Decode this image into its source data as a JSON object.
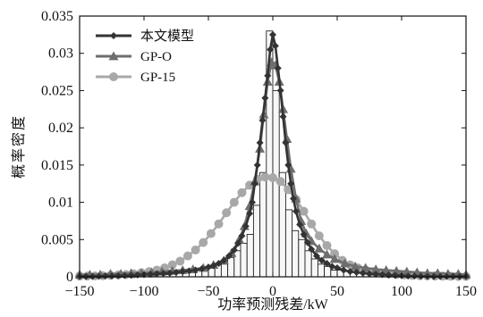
{
  "chart_data": {
    "type": "line",
    "xlabel": "功率预测残差/kW",
    "ylabel": "概率密度",
    "xlim": [
      -150,
      150
    ],
    "ylim": [
      0,
      0.035
    ],
    "x_ticks": [
      -150,
      -100,
      -50,
      0,
      50,
      100,
      150
    ],
    "x_tick_labels": [
      "−150",
      "−100",
      "−50",
      "0",
      "50",
      "100",
      "150"
    ],
    "y_ticks": [
      0,
      0.005,
      0.01,
      0.015,
      0.02,
      0.025,
      0.03,
      0.035
    ],
    "y_tick_labels": [
      "0",
      "0.005",
      "0.01",
      "0.015",
      "0.02",
      "0.025",
      "0.03",
      "0.035"
    ],
    "legend_position": "top-left",
    "histogram": {
      "bin_width": 5,
      "bin_starts": [
        -150,
        -145,
        -140,
        -135,
        -130,
        -125,
        -120,
        -115,
        -110,
        -105,
        -100,
        -95,
        -90,
        -85,
        -80,
        -75,
        -70,
        -65,
        -60,
        -55,
        -50,
        -45,
        -40,
        -35,
        -30,
        -25,
        -20,
        -15,
        -10,
        -5,
        0,
        5,
        10,
        15,
        20,
        25,
        30,
        35,
        40,
        45,
        50,
        55,
        60,
        65,
        70,
        75,
        80,
        85,
        90,
        95,
        100,
        105,
        110,
        115,
        120,
        125,
        130,
        135,
        140,
        145
      ],
      "values": [
        0,
        0,
        0,
        0,
        0.0001,
        0,
        0,
        0.0001,
        0.0001,
        0.0002,
        0.0003,
        0.0003,
        0.0004,
        0.0003,
        0.0006,
        0.0006,
        0.0008,
        0.0007,
        0.001,
        0.0009,
        0.0012,
        0.0016,
        0.0017,
        0.0026,
        0.0035,
        0.0045,
        0.0057,
        0.0096,
        0.014,
        0.033,
        0.025,
        0.014,
        0.009,
        0.0062,
        0.005,
        0.0035,
        0.0024,
        0.0017,
        0.0014,
        0.0009,
        0.0009,
        0.0008,
        0.0006,
        0.0005,
        0.0005,
        0.0003,
        0.0002,
        0.0002,
        0.0002,
        0.0001,
        0.0001,
        0.0001,
        0,
        0.0001,
        0,
        0,
        0,
        0,
        0,
        0
      ]
    },
    "series": [
      {
        "name": "本文模型",
        "color": "#333333",
        "marker": "diamond",
        "x": [
          -150,
          -145,
          -140,
          -135,
          -130,
          -125,
          -120,
          -115,
          -110,
          -105,
          -100,
          -95,
          -90,
          -85,
          -80,
          -75,
          -70,
          -65,
          -60,
          -55,
          -50,
          -46,
          -42,
          -38,
          -34,
          -30,
          -27,
          -24,
          -21,
          -18,
          -16,
          -14,
          -12,
          -10,
          -8,
          -6,
          -4,
          -2,
          0,
          2,
          4,
          6,
          8,
          10,
          12,
          14,
          16,
          18,
          21,
          24,
          27,
          30,
          34,
          38,
          42,
          46,
          50,
          55,
          60,
          65,
          70,
          75,
          80,
          85,
          90,
          95,
          100,
          105,
          110,
          115,
          120,
          125,
          130,
          135,
          140,
          145,
          150
        ],
        "y": [
          5e-05,
          5e-05,
          5e-05,
          7e-05,
          0.0001,
          0.00012,
          0.00015,
          0.00018,
          0.0002,
          0.00025,
          0.0003,
          0.00035,
          0.0004,
          0.00045,
          0.0005,
          0.0006,
          0.0007,
          0.0008,
          0.0009,
          0.0011,
          0.0013,
          0.0015,
          0.0018,
          0.0022,
          0.0028,
          0.0036,
          0.0045,
          0.0055,
          0.0068,
          0.0085,
          0.01,
          0.0125,
          0.015,
          0.018,
          0.021,
          0.024,
          0.027,
          0.0305,
          0.0325,
          0.031,
          0.028,
          0.025,
          0.0215,
          0.018,
          0.015,
          0.0125,
          0.0105,
          0.0088,
          0.007,
          0.0057,
          0.0046,
          0.0037,
          0.0028,
          0.0022,
          0.0018,
          0.0014,
          0.0012,
          0.0009,
          0.0007,
          0.0006,
          0.0005,
          0.0004,
          0.00035,
          0.0003,
          0.00025,
          0.0002,
          0.00015,
          0.0001,
          0.0001,
          8e-05,
          6e-05,
          5e-05,
          5e-05,
          5e-05,
          5e-05,
          5e-05,
          5e-05
        ]
      },
      {
        "name": "GP-O",
        "color": "#6e6e6e",
        "marker": "triangle",
        "x": [
          -150,
          -142,
          -134,
          -126,
          -118,
          -110,
          -102,
          -94,
          -86,
          -78,
          -70,
          -62,
          -54,
          -46,
          -38,
          -32,
          -26,
          -22,
          -18,
          -14,
          -10,
          -7,
          -4,
          -1,
          2,
          5,
          8,
          11,
          14,
          18,
          22,
          26,
          30,
          36,
          42,
          48,
          56,
          64,
          72,
          80,
          88,
          96,
          104,
          112,
          120,
          128,
          136,
          144,
          150
        ],
        "y": [
          0.0003,
          0.0003,
          0.0003,
          0.0004,
          0.0004,
          0.0005,
          0.0005,
          0.0006,
          0.0007,
          0.0008,
          0.0009,
          0.001,
          0.0012,
          0.0016,
          0.0022,
          0.0032,
          0.005,
          0.0068,
          0.0095,
          0.0128,
          0.0172,
          0.0218,
          0.0262,
          0.0288,
          0.0284,
          0.0262,
          0.0225,
          0.0185,
          0.0145,
          0.0105,
          0.0075,
          0.0058,
          0.0048,
          0.0038,
          0.003,
          0.0024,
          0.0018,
          0.0014,
          0.0012,
          0.001,
          0.0009,
          0.0008,
          0.0007,
          0.0006,
          0.0005,
          0.0005,
          0.0004,
          0.0004,
          0.0003
        ]
      },
      {
        "name": "GP-15",
        "color": "#a8a8a8",
        "marker": "circle",
        "x": [
          -150,
          -144,
          -138,
          -132,
          -126,
          -120,
          -114,
          -108,
          -102,
          -96,
          -90,
          -84,
          -78,
          -72,
          -66,
          -60,
          -54,
          -48,
          -42,
          -36,
          -30,
          -24,
          -18,
          -12,
          -6,
          0,
          6,
          12,
          18,
          24,
          30,
          36,
          42,
          48,
          54,
          60,
          66,
          72,
          78,
          84,
          90,
          96,
          102,
          108,
          114,
          120,
          126,
          132,
          138,
          144,
          150
        ],
        "y": [
          0.0001,
          0.0001,
          0.00012,
          0.00015,
          0.0002,
          0.00025,
          0.0003,
          0.0004,
          0.00055,
          0.0007,
          0.0009,
          0.0012,
          0.0016,
          0.0021,
          0.0028,
          0.0036,
          0.0046,
          0.0058,
          0.0071,
          0.0086,
          0.01,
          0.0113,
          0.0123,
          0.0131,
          0.0134,
          0.0133,
          0.0128,
          0.0117,
          0.0104,
          0.0088,
          0.0071,
          0.0055,
          0.0042,
          0.0031,
          0.0022,
          0.0016,
          0.0012,
          0.0009,
          0.0007,
          0.00055,
          0.0004,
          0.0003,
          0.00025,
          0.0002,
          0.00015,
          0.00012,
          0.0001,
          0.0001,
          8e-05,
          5e-05,
          5e-05
        ]
      }
    ]
  }
}
